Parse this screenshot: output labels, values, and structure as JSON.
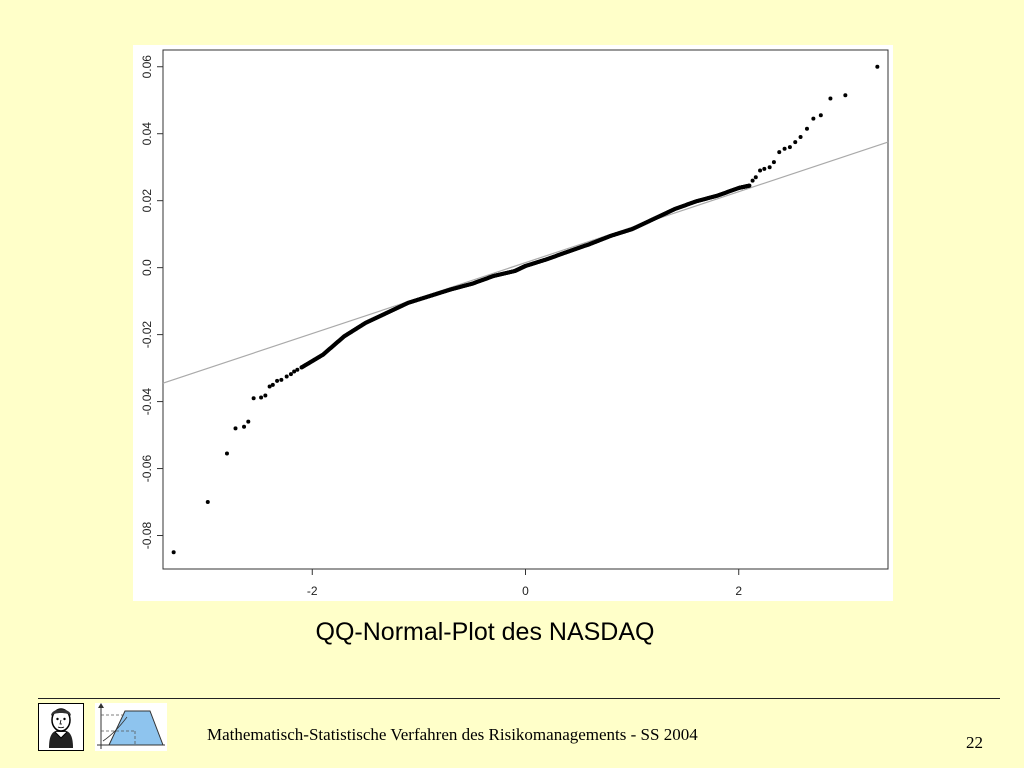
{
  "slide": {
    "caption": "QQ-Normal-Plot des NASDAQ",
    "footer": "Mathematisch-Statistische Verfahren des Risikomanagements - SS 2004",
    "page_number": "22",
    "background_color": "#ffffc9"
  },
  "chart_data": {
    "type": "scatter",
    "title": "",
    "xlabel": "",
    "ylabel": "",
    "xlim": [
      -3.4,
      3.4
    ],
    "ylim": [
      -0.09,
      0.065
    ],
    "x_ticks": [
      -2,
      0,
      2
    ],
    "x_tick_labels": [
      "-2",
      "0",
      "2"
    ],
    "y_ticks": [
      -0.08,
      -0.06,
      -0.04,
      -0.02,
      0.0,
      0.02,
      0.04,
      0.06
    ],
    "y_tick_labels": [
      "-0.08",
      "-0.06",
      "-0.04",
      "-0.02",
      "0.0",
      "0.02",
      "0.04",
      "0.06"
    ],
    "grid": false,
    "reference_line": {
      "x": [
        -3.4,
        3.4
      ],
      "y": [
        -0.0345,
        0.0375
      ],
      "color": "#aaaaaa"
    },
    "tail_points": {
      "x": [
        -3.3,
        -2.98,
        -2.8,
        -2.72,
        -2.64,
        -2.6,
        -2.55,
        -2.48,
        -2.44,
        -2.4,
        -2.37,
        -2.33,
        -2.29,
        -2.24,
        -2.2,
        -2.17,
        -2.14,
        -2.1,
        2.1,
        2.13,
        2.16,
        2.2,
        2.24,
        2.29,
        2.33,
        2.38,
        2.43,
        2.48,
        2.53,
        2.58,
        2.64,
        2.7,
        2.77,
        2.86,
        3.0,
        3.3
      ],
      "y": [
        -0.085,
        -0.07,
        -0.0555,
        -0.048,
        -0.0475,
        -0.046,
        -0.039,
        -0.0388,
        -0.0382,
        -0.0355,
        -0.035,
        -0.0338,
        -0.0335,
        -0.0325,
        -0.0318,
        -0.031,
        -0.0305,
        -0.0298,
        0.0245,
        0.026,
        0.027,
        0.029,
        0.0295,
        0.03,
        0.0315,
        0.0345,
        0.0355,
        0.036,
        0.0375,
        0.039,
        0.0415,
        0.0445,
        0.0455,
        0.0505,
        0.0515,
        0.06
      ]
    },
    "body_curve": {
      "x": [
        -2.1,
        -1.9,
        -1.7,
        -1.5,
        -1.3,
        -1.1,
        -0.9,
        -0.7,
        -0.5,
        -0.3,
        -0.1,
        0.0,
        0.2,
        0.4,
        0.6,
        0.8,
        1.0,
        1.2,
        1.4,
        1.6,
        1.8,
        2.0,
        2.1
      ],
      "y": [
        -0.0298,
        -0.026,
        -0.0205,
        -0.0165,
        -0.0135,
        -0.0105,
        -0.0085,
        -0.0065,
        -0.0048,
        -0.0025,
        -0.001,
        0.0005,
        0.0025,
        0.0048,
        0.007,
        0.0095,
        0.0115,
        0.0145,
        0.0175,
        0.0198,
        0.0215,
        0.0238,
        0.0245
      ],
      "points_per_segment": 30
    },
    "point_color": "#000000"
  },
  "icons": {
    "portrait": "portrait-logo-icon",
    "distribution": "distribution-logo-icon"
  }
}
